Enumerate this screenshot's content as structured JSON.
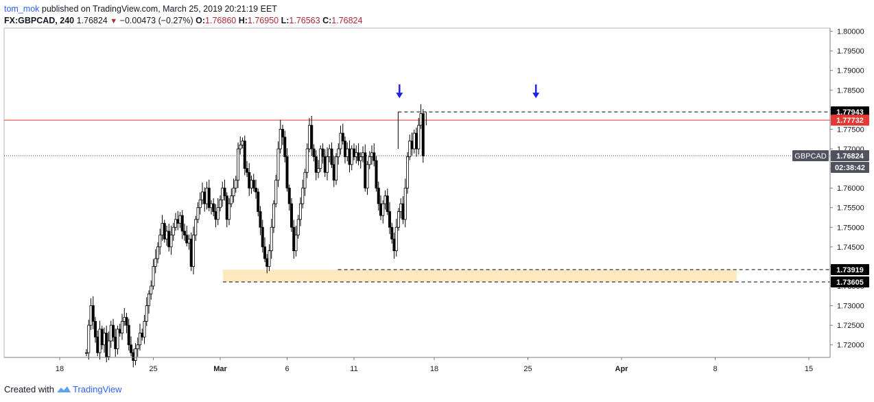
{
  "header": {
    "author": "tom_mok",
    "published_text": " published on TradingView.com, March 25, 2019 20:21:19 EET"
  },
  "ohlc": {
    "symbol": "FX:GBPCAD, 240",
    "last": "1.76824",
    "change": "−0.00473 (−0.27%)",
    "o_label": "O:",
    "o": "1.76860",
    "h_label": "H:",
    "h": "1.76950",
    "l_label": "L:",
    "l": "1.76563",
    "c_label": "C:",
    "c": "1.76824"
  },
  "footer": {
    "created_with": "Created with",
    "brand": "TradingView"
  },
  "colors": {
    "up_body": "#ffffff",
    "candle_line": "#000000",
    "resistance": "#e53935",
    "zone": "#fde8c0",
    "arrow": "#1e22e8",
    "badge_dark": "#000000",
    "badge_red": "#e53935",
    "badge_grey": "#50535e"
  },
  "chart_data": {
    "type": "candlestick",
    "symbol": "GBPCAD",
    "timeframe": "240",
    "ylim": [
      1.7168,
      1.8008
    ],
    "y_ticks": [
      "1.80000",
      "1.79500",
      "1.79000",
      "1.78500",
      "1.78000",
      "1.77500",
      "1.77000",
      "1.76500",
      "1.76000",
      "1.75500",
      "1.75000",
      "1.74500",
      "1.74000",
      "1.73500",
      "1.73000",
      "1.72500",
      "1.72000"
    ],
    "y_tick_values": [
      1.8,
      1.795,
      1.79,
      1.785,
      1.78,
      1.775,
      1.77,
      1.765,
      1.76,
      1.755,
      1.75,
      1.745,
      1.74,
      1.735,
      1.73,
      1.725,
      1.72
    ],
    "x_ticks": [
      "18",
      "25",
      "Mar",
      "6",
      "11",
      "18",
      "25",
      "Apr",
      "8",
      "15"
    ],
    "x_tick_days": [
      0,
      7,
      12,
      17,
      22,
      28,
      35,
      42,
      49,
      56
    ],
    "day_origin_label": "18",
    "candles_per_day": 6,
    "first_candle_day": 2.0,
    "start_price": 1.718,
    "close_series": [
      1.718,
      1.725,
      1.73,
      1.726,
      1.722,
      1.718,
      1.724,
      1.72,
      1.723,
      1.717,
      1.721,
      1.725,
      1.722,
      1.719,
      1.724,
      1.723,
      1.726,
      1.727,
      1.725,
      1.72,
      1.718,
      1.716,
      1.719,
      1.72,
      1.723,
      1.722,
      1.726,
      1.73,
      1.733,
      1.735,
      1.74,
      1.742,
      1.745,
      1.748,
      1.751,
      1.747,
      1.749,
      1.745,
      1.748,
      1.75,
      1.752,
      1.751,
      1.753,
      1.749,
      1.748,
      1.746,
      1.747,
      1.74,
      1.748,
      1.752,
      1.755,
      1.757,
      1.759,
      1.756,
      1.76,
      1.755,
      1.756,
      1.754,
      1.752,
      1.755,
      1.757,
      1.76,
      1.758,
      1.752,
      1.756,
      1.758,
      1.76,
      1.762,
      1.77,
      1.771,
      1.772,
      1.765,
      1.764,
      1.76,
      1.762,
      1.76,
      1.759,
      1.754,
      1.75,
      1.745,
      1.742,
      1.74,
      1.744,
      1.75,
      1.756,
      1.762,
      1.77,
      1.775,
      1.773,
      1.768,
      1.76,
      1.756,
      1.75,
      1.744,
      1.748,
      1.752,
      1.756,
      1.76,
      1.764,
      1.77,
      1.776,
      1.77,
      1.768,
      1.764,
      1.765,
      1.77,
      1.768,
      1.764,
      1.768,
      1.77,
      1.766,
      1.762,
      1.768,
      1.77,
      1.774,
      1.772,
      1.768,
      1.77,
      1.766,
      1.77,
      1.768,
      1.769,
      1.767,
      1.768,
      1.769,
      1.76,
      1.766,
      1.768,
      1.769,
      1.767,
      1.76,
      1.756,
      1.753,
      1.756,
      1.758,
      1.754,
      1.75,
      1.747,
      1.744,
      1.75,
      1.754,
      1.756,
      1.752,
      1.76,
      1.768,
      1.772,
      1.77,
      1.774,
      1.77,
      1.776,
      1.779,
      1.7682
    ],
    "horizontal_levels": [
      {
        "price": 1.77943,
        "label": "1.77943",
        "style": "dashed"
      },
      {
        "price": 1.77732,
        "label": "1.77732",
        "style": "solid-red"
      },
      {
        "price": 1.73919,
        "label": "1.73919",
        "style": "dashed"
      },
      {
        "price": 1.73605,
        "label": "1.73605",
        "style": "dashed"
      }
    ],
    "zone": {
      "from": 1.73605,
      "to": 1.73919,
      "start_day": 12.2,
      "end_day": 50.6
    },
    "current_price": {
      "name": "GBPCAD",
      "price": 1.76824,
      "label": "1.76824",
      "countdown": "02:38:42"
    },
    "arrows": [
      {
        "day": 25.4,
        "price": 1.7845
      },
      {
        "day": 35.6,
        "price": 1.7845
      }
    ]
  }
}
